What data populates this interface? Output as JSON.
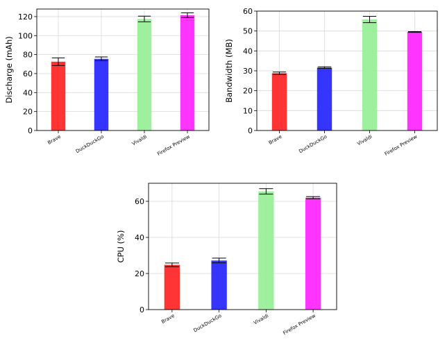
{
  "chart_data": [
    {
      "type": "bar",
      "categories": [
        "Brave",
        "DuckDuckGo",
        "Vivaldi",
        "Firefox Preview"
      ],
      "values": [
        72.5,
        75.5,
        117.5,
        121.5
      ],
      "errors": [
        4,
        2,
        3,
        2.5
      ],
      "colors": [
        "#ff2a2a",
        "#2a2aff",
        "#99ee99",
        "#ff2aff"
      ],
      "ylabel": "Discharge (mAh)",
      "xlabel": "",
      "ylim": [
        0,
        128
      ],
      "yticks": [
        0,
        20,
        40,
        60,
        80,
        100,
        120
      ],
      "grid": true
    },
    {
      "type": "bar",
      "categories": [
        "Brave",
        "DuckDuckGo",
        "Vivaldi",
        "Firefox Preview"
      ],
      "values": [
        28.8,
        31.6,
        55.8,
        49.5
      ],
      "errors": [
        0.6,
        0.4,
        1.6,
        0.2
      ],
      "colors": [
        "#ff2a2a",
        "#2a2aff",
        "#99ee99",
        "#ff2aff"
      ],
      "ylabel": "Bandwidth (MB)",
      "xlabel": "",
      "ylim": [
        0,
        60
      ],
      "yticks": [
        0,
        10,
        20,
        30,
        40,
        50,
        60
      ],
      "grid": true
    },
    {
      "type": "bar",
      "categories": [
        "Brave",
        "DuckDuckGo",
        "Vivaldi",
        "Firefox Preview"
      ],
      "values": [
        24.8,
        27.2,
        65.5,
        62.0
      ],
      "errors": [
        1.0,
        1.3,
        1.5,
        0.6
      ],
      "colors": [
        "#ff2a2a",
        "#2a2aff",
        "#99ee99",
        "#ff2aff"
      ],
      "ylabel": "CPU (%)",
      "xlabel": "",
      "ylim": [
        0,
        70
      ],
      "yticks": [
        0,
        20,
        40,
        60
      ],
      "grid": true
    }
  ]
}
